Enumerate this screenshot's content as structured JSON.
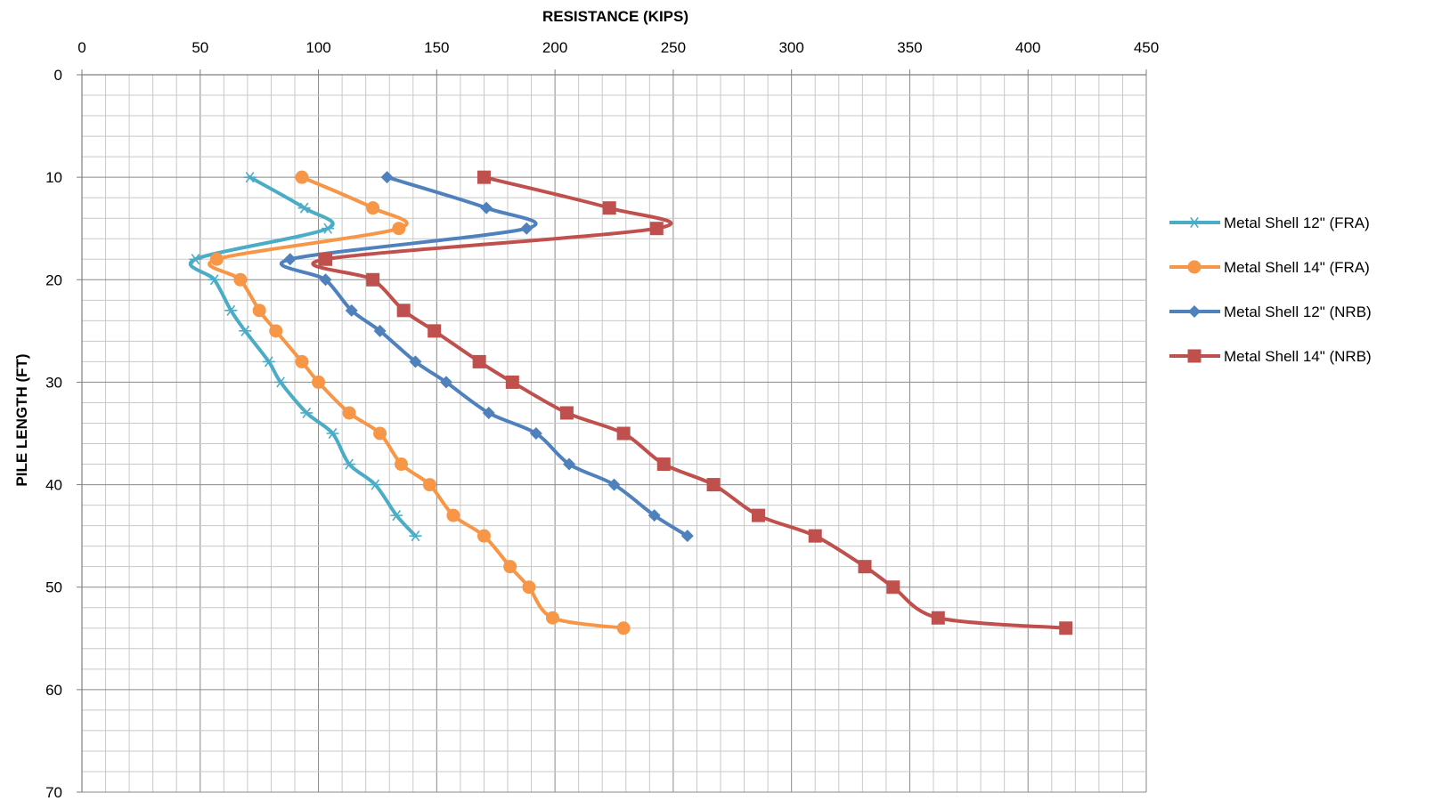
{
  "chart_data": {
    "type": "line",
    "title": "",
    "xlabel": "RESISTANCE  (KIPS)",
    "ylabel": "PILE LENGTH (FT)",
    "xlim": [
      0,
      450
    ],
    "ylim": [
      0,
      70
    ],
    "x_ticks": [
      "0",
      "50",
      "100",
      "150",
      "200",
      "250",
      "300",
      "350",
      "400",
      "450"
    ],
    "y_ticks": [
      "0",
      "10",
      "20",
      "30",
      "40",
      "50",
      "60",
      "70"
    ],
    "x_axis_position": "top",
    "y_axis_inverted": true,
    "grid": "major and minor",
    "legend_position": "right",
    "series": [
      {
        "name": "Metal Shell 12\" (FRA)",
        "color": "#4BACC6",
        "marker": "star",
        "points": [
          [
            71,
            10
          ],
          [
            94,
            13
          ],
          [
            104,
            15
          ],
          [
            48,
            18
          ],
          [
            56,
            20
          ],
          [
            63,
            23
          ],
          [
            69,
            25
          ],
          [
            79,
            28
          ],
          [
            84,
            30
          ],
          [
            95,
            33
          ],
          [
            106,
            35
          ],
          [
            113,
            38
          ],
          [
            124,
            40
          ],
          [
            133,
            43
          ],
          [
            141,
            45
          ]
        ]
      },
      {
        "name": "Metal Shell 14\" (FRA)",
        "color": "#F79646",
        "marker": "circle",
        "points": [
          [
            93,
            10
          ],
          [
            123,
            13
          ],
          [
            134,
            15
          ],
          [
            57,
            18
          ],
          [
            67,
            20
          ],
          [
            75,
            23
          ],
          [
            82,
            25
          ],
          [
            93,
            28
          ],
          [
            100,
            30
          ],
          [
            113,
            33
          ],
          [
            126,
            35
          ],
          [
            135,
            38
          ],
          [
            147,
            40
          ],
          [
            157,
            43
          ],
          [
            170,
            45
          ],
          [
            181,
            48
          ],
          [
            189,
            50
          ],
          [
            199,
            53
          ],
          [
            229,
            54
          ]
        ]
      },
      {
        "name": "Metal Shell 12\" (NRB)",
        "color": "#4F81BD",
        "marker": "diamond",
        "points": [
          [
            129,
            10
          ],
          [
            171,
            13
          ],
          [
            188,
            15
          ],
          [
            88,
            18
          ],
          [
            103,
            20
          ],
          [
            114,
            23
          ],
          [
            126,
            25
          ],
          [
            141,
            28
          ],
          [
            154,
            30
          ],
          [
            172,
            33
          ],
          [
            192,
            35
          ],
          [
            206,
            38
          ],
          [
            225,
            40
          ],
          [
            242,
            43
          ],
          [
            256,
            45
          ]
        ]
      },
      {
        "name": "Metal Shell 14\" (NRB)",
        "color": "#C0504D",
        "marker": "square",
        "points": [
          [
            170,
            10
          ],
          [
            223,
            13
          ],
          [
            243,
            15
          ],
          [
            103,
            18
          ],
          [
            123,
            20
          ],
          [
            136,
            23
          ],
          [
            149,
            25
          ],
          [
            168,
            28
          ],
          [
            182,
            30
          ],
          [
            205,
            33
          ],
          [
            229,
            35
          ],
          [
            246,
            38
          ],
          [
            267,
            40
          ],
          [
            286,
            43
          ],
          [
            310,
            45
          ],
          [
            331,
            48
          ],
          [
            343,
            50
          ],
          [
            362,
            53
          ],
          [
            416,
            54
          ]
        ]
      }
    ]
  }
}
